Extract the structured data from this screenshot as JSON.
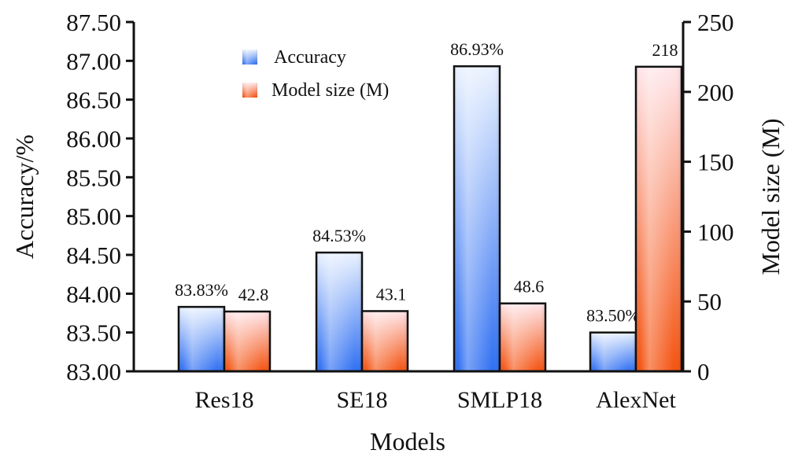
{
  "chart_data": {
    "type": "bar",
    "categories": [
      "Res18",
      "SE18",
      "SMLP18",
      "AlexNet"
    ],
    "series": [
      {
        "name": "Accuracy",
        "axis": "left",
        "values": [
          83.83,
          84.53,
          86.93,
          83.5
        ],
        "labels": [
          "83.83%",
          "84.53%",
          "86.93%",
          "83.50%"
        ],
        "color": "#2f6ff2",
        "color_light": "#eaf2ff"
      },
      {
        "name": "Model size (M)",
        "axis": "right",
        "values": [
          42.8,
          43.1,
          48.6,
          218
        ],
        "labels": [
          "42.8",
          "43.1",
          "48.6",
          "218"
        ],
        "color": "#f4520f",
        "color_light": "#ffe6ea"
      }
    ],
    "xlabel": "Models",
    "ylabel": "Accuracy/%",
    "y2label": "Model size (M)",
    "ylim": [
      83.0,
      87.5
    ],
    "y2lim": [
      0,
      250
    ],
    "yticks": [
      "83.00",
      "83.50",
      "84.00",
      "84.50",
      "85.00",
      "85.50",
      "86.00",
      "86.50",
      "87.00",
      "87.50"
    ],
    "y2ticks": [
      "0",
      "50",
      "100",
      "150",
      "200",
      "250"
    ],
    "legend": "top-center",
    "grid": false
  }
}
